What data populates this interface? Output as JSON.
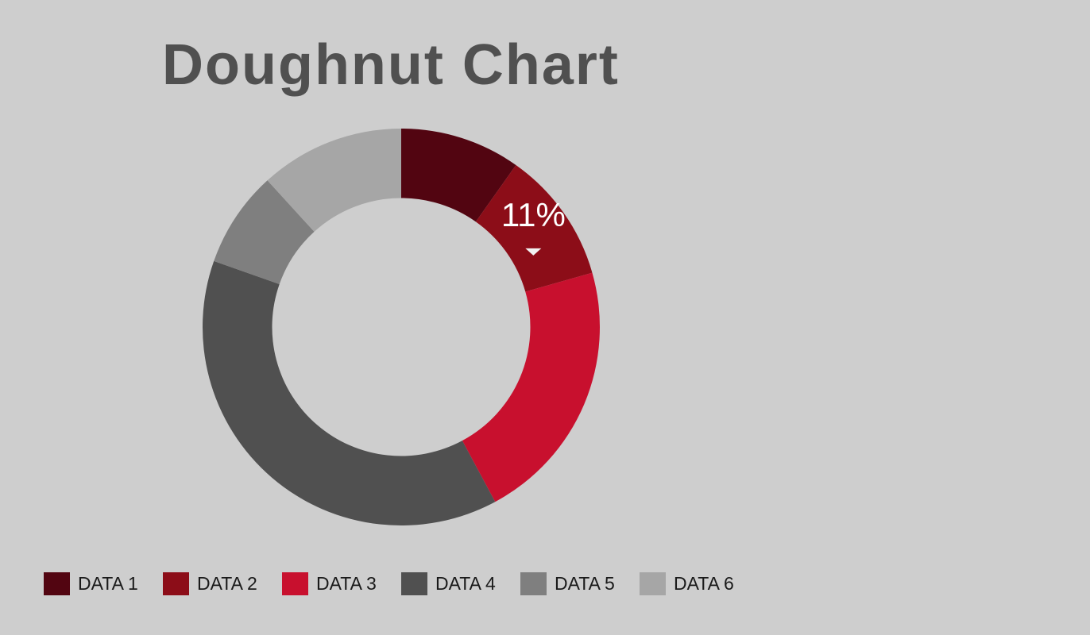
{
  "chart_data": {
    "type": "pie",
    "title": "Doughnut Chart",
    "categories": [
      "DATA 1",
      "DATA 2",
      "DATA 3",
      "DATA 4",
      "DATA 5",
      "DATA 6"
    ],
    "values": [
      10,
      11,
      22,
      39,
      8,
      12
    ],
    "colors": [
      "#520511",
      "#8c0d18",
      "#c8102e",
      "#505050",
      "#7f7f7f",
      "#a6a6a6"
    ],
    "hole_ratio": 0.65,
    "tooltip": {
      "category": "DATA 2",
      "text": "11%"
    },
    "legend_position": "bottom-left"
  }
}
